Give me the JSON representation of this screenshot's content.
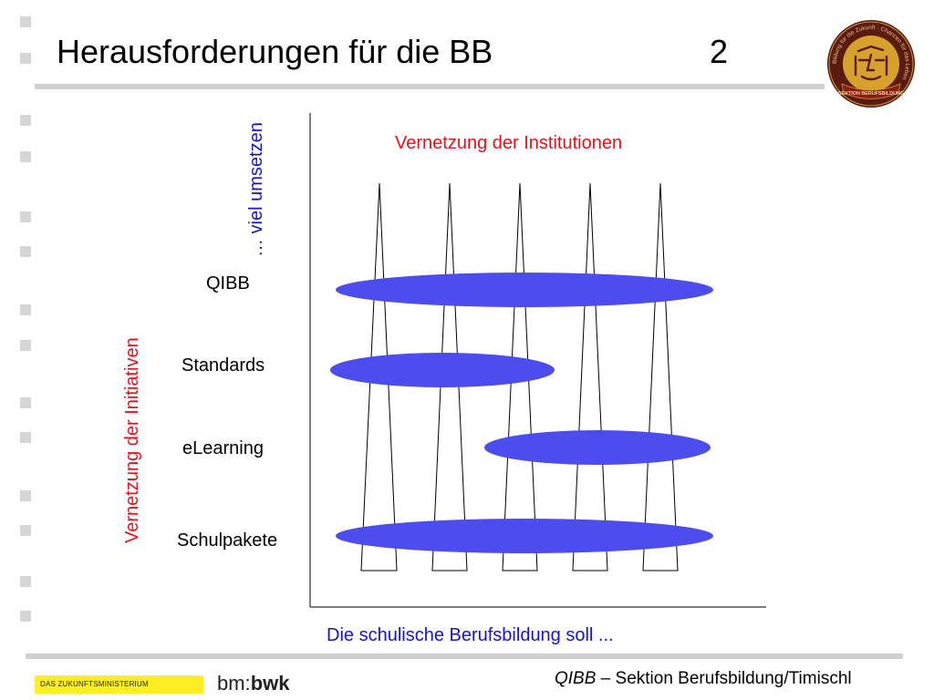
{
  "slide": {
    "title": "Herausforderungen für die BB",
    "number": "2"
  },
  "logo": {
    "ring_text": "Bildung für die Zukunft · Chancen für das Leben",
    "banner_text": "SEKTION BERUFSBILDUNG",
    "colors": {
      "ring": "#5a1a10",
      "face": "#d8a12c",
      "banner": "#8b1d12"
    }
  },
  "diagram": {
    "vertical_axis_label": "Vernetzung  der Initiativen",
    "top_axis_label": "… viel umsetzen",
    "top_label": "Vernetzung der Institutionen",
    "bottom_caption": "Die schulische Berufsbildung soll ...",
    "rows": [
      {
        "label": "QIBB"
      },
      {
        "label": "Standards"
      },
      {
        "label": "eLearning"
      },
      {
        "label": "Schulpakete"
      }
    ],
    "colors": {
      "ellipse": "#4c4cef",
      "vertical_label": "#e8101a",
      "top_axis_label": "#1414d2",
      "bottom_caption": "#1414d2"
    }
  },
  "footer": {
    "ministry": "DAS ZUKUNFTSMINISTERIUM",
    "brand_prefix": "bm:",
    "brand_suffix": "bwk",
    "credit_italic": "QIBB",
    "credit_rest": " – Sektion Berufsbildung/Timischl"
  }
}
